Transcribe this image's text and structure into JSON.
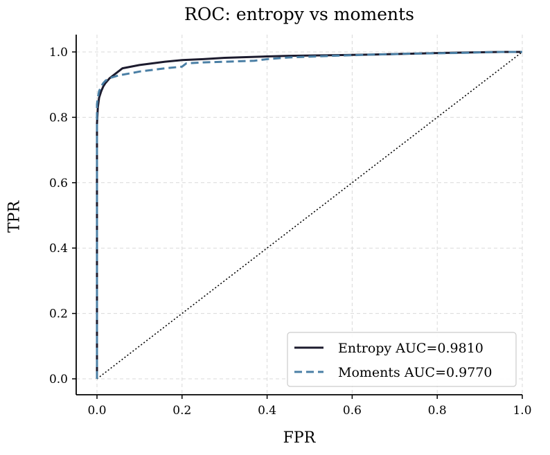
{
  "chart_data": {
    "type": "line",
    "title": "ROC: entropy vs moments",
    "xlabel": "FPR",
    "ylabel": "TPR",
    "xlim": [
      -0.05,
      1.0
    ],
    "ylim": [
      0.0,
      1.0
    ],
    "xticks": [
      "0.0",
      "0.2",
      "0.4",
      "0.6",
      "0.8",
      "1.0"
    ],
    "yticks": [
      "0.0",
      "0.2",
      "0.4",
      "0.6",
      "0.8",
      "1.0"
    ],
    "grid": true,
    "legend_position": "bottom-right",
    "series": [
      {
        "name": "Entropy AUC=0.9810",
        "color": "#1c1b2e",
        "style": "solid",
        "x": [
          0.0,
          0.0,
          0.002,
          0.005,
          0.01,
          0.015,
          0.02,
          0.03,
          0.04,
          0.05,
          0.06,
          0.08,
          0.1,
          0.13,
          0.16,
          0.2,
          0.25,
          0.3,
          0.37,
          0.45,
          0.55,
          0.65,
          0.75,
          0.85,
          0.95,
          1.0
        ],
        "y": [
          0.0,
          0.78,
          0.83,
          0.86,
          0.88,
          0.895,
          0.905,
          0.92,
          0.93,
          0.94,
          0.95,
          0.955,
          0.96,
          0.965,
          0.97,
          0.975,
          0.978,
          0.982,
          0.985,
          0.988,
          0.99,
          0.992,
          0.995,
          0.998,
          1.0,
          1.0
        ]
      },
      {
        "name": "Moments AUC=0.9770",
        "color": "#4a7fa5",
        "style": "dashed",
        "x": [
          0.0,
          0.0,
          0.002,
          0.005,
          0.01,
          0.015,
          0.02,
          0.03,
          0.05,
          0.08,
          0.1,
          0.13,
          0.16,
          0.2,
          0.21,
          0.25,
          0.3,
          0.37,
          0.4,
          0.45,
          0.55,
          0.65,
          0.75,
          0.85,
          0.95,
          1.0
        ],
        "y": [
          0.0,
          0.84,
          0.86,
          0.88,
          0.895,
          0.905,
          0.912,
          0.92,
          0.928,
          0.935,
          0.94,
          0.945,
          0.95,
          0.955,
          0.965,
          0.968,
          0.97,
          0.973,
          0.978,
          0.983,
          0.988,
          0.992,
          0.995,
          0.997,
          1.0,
          1.0
        ]
      },
      {
        "name": "",
        "color": "#000000",
        "style": "dotted",
        "x": [
          0.0,
          1.0
        ],
        "y": [
          0.0,
          1.0
        ]
      }
    ]
  }
}
